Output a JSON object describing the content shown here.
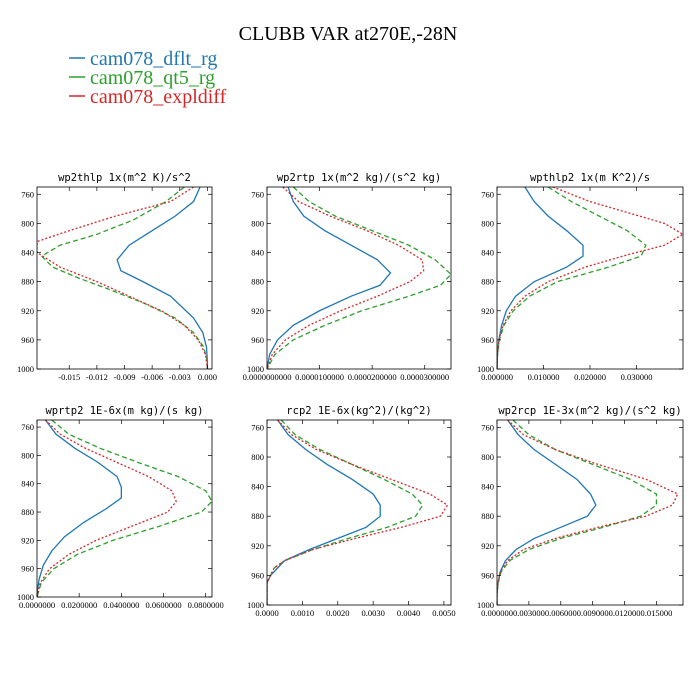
{
  "chart_data": {
    "title": "CLUBB VAR at270E,-28N",
    "type": "line",
    "legend": [
      {
        "name": "cam078_dflt_rg",
        "color": "#1f77b4"
      },
      {
        "name": "cam078_qt5_rg",
        "color": "#2ca02c"
      },
      {
        "name": "cam078_expldiff",
        "color": "#d62728"
      }
    ],
    "panels": [
      {
        "title": "wp2thlp  1x(m^2 K)/s^2",
        "xlim": [
          -0.0185,
          0.0005
        ],
        "xticks": [
          -0.015,
          -0.012,
          -0.009,
          -0.006,
          -0.003,
          0.0
        ],
        "xticklabels": [
          "-0.015",
          "-0.012",
          "-0.009",
          "-0.006",
          "-0.003",
          "0.000"
        ],
        "ylim": [
          1000,
          750
        ],
        "yticks": [
          760,
          800,
          840,
          880,
          920,
          960,
          1000
        ],
        "yticklabels": [
          "760",
          "800",
          "840",
          "880",
          "920",
          "960",
          "1000"
        ],
        "series": [
          {
            "name": "cam078_dflt_rg",
            "color": "#1f77b4",
            "dash": "",
            "p": [
              750,
              770,
              790,
              810,
              830,
              850,
              865,
              880,
              900,
              930,
              950,
              970,
              990,
              1000
            ],
            "x": [
              -0.0008,
              -0.0015,
              -0.0035,
              -0.006,
              -0.0085,
              -0.0098,
              -0.0094,
              -0.007,
              -0.004,
              -0.0015,
              -0.0005,
              -0.0001,
              0.0,
              0.0
            ]
          },
          {
            "name": "cam078_qt5_rg",
            "color": "#2ca02c",
            "dash": "5,3",
            "p": [
              750,
              770,
              795,
              815,
              830,
              845,
              860,
              875,
              890,
              910,
              930,
              950,
              970,
              990,
              1000
            ],
            "x": [
              -0.0025,
              -0.0045,
              -0.008,
              -0.012,
              -0.016,
              -0.018,
              -0.0168,
              -0.014,
              -0.0108,
              -0.0068,
              -0.0035,
              -0.0015,
              -0.0004,
              0.0,
              0.0
            ]
          },
          {
            "name": "cam078_expldiff",
            "color": "#d62728",
            "dash": "2,2",
            "p": [
              750,
              770,
              790,
              810,
              825,
              840,
              860,
              880,
              900,
              920,
              940,
              960,
              980,
              1000
            ],
            "x": [
              -0.0015,
              -0.004,
              -0.01,
              -0.015,
              -0.0185,
              -0.0185,
              -0.016,
              -0.012,
              -0.0085,
              -0.005,
              -0.0025,
              -0.001,
              -0.0002,
              0.0
            ]
          }
        ]
      },
      {
        "title": "wp2rtp  1x(m^2 kg)/(s^2 kg)",
        "xlim": [
          0.0,
          3.5e-05
        ],
        "xticks": [
          0.0,
          1e-05,
          2e-05,
          3e-05
        ],
        "xticklabels": [
          "0.0000000000",
          "0.0000100000",
          "0.0000200000",
          "0.0000300000"
        ],
        "ylim": [
          1000,
          750
        ],
        "yticks": [
          760,
          800,
          840,
          880,
          920,
          960,
          1000
        ],
        "yticklabels": [
          "760",
          "800",
          "840",
          "880",
          "920",
          "960",
          "1000"
        ],
        "series": [
          {
            "name": "cam078_dflt_rg",
            "color": "#1f77b4",
            "dash": "",
            "p": [
              750,
              770,
              790,
              810,
              830,
              850,
              868,
              885,
              900,
              920,
              940,
              960,
              980,
              1000
            ],
            "x": [
              4e-06,
              5e-06,
              7e-06,
              1.1e-05,
              1.6e-05,
              2.1e-05,
              2.35e-05,
              2.15e-05,
              1.6e-05,
              1e-05,
              5e-06,
              2e-06,
              5e-07,
              0.0
            ]
          },
          {
            "name": "cam078_qt5_rg",
            "color": "#2ca02c",
            "dash": "5,3",
            "p": [
              750,
              770,
              790,
              810,
              830,
              850,
              870,
              885,
              900,
              920,
              940,
              960,
              980,
              1000
            ],
            "x": [
              5e-06,
              8e-06,
              1.3e-05,
              2e-05,
              2.7e-05,
              3.2e-05,
              3.5e-05,
              3.3e-05,
              2.7e-05,
              1.8e-05,
              1.1e-05,
              5e-06,
              1.5e-06,
              0.0
            ]
          },
          {
            "name": "cam078_expldiff",
            "color": "#d62728",
            "dash": "2,2",
            "p": [
              750,
              770,
              790,
              810,
              830,
              850,
              865,
              880,
              900,
              920,
              940,
              960,
              980,
              1000
            ],
            "x": [
              3e-06,
              6e-06,
              1.2e-05,
              1.9e-05,
              2.5e-05,
              2.95e-05,
              2.98e-05,
              2.72e-05,
              2.1e-05,
              1.4e-05,
              8e-06,
              3.5e-06,
              1e-06,
              0.0
            ]
          }
        ]
      },
      {
        "title": "wpthlp2  1x(m K^2)/s",
        "xlim": [
          0.0,
          0.04
        ],
        "xticks": [
          0.0,
          0.01,
          0.02,
          0.03
        ],
        "xticklabels": [
          "0.000000",
          "0.010000",
          "0.020000",
          "0.030000"
        ],
        "ylim": [
          1000,
          750
        ],
        "yticks": [
          760,
          800,
          840,
          880,
          920,
          960,
          1000
        ],
        "yticklabels": [
          "760",
          "800",
          "840",
          "880",
          "920",
          "960",
          "1000"
        ],
        "series": [
          {
            "name": "cam078_dflt_rg",
            "color": "#1f77b4",
            "dash": "",
            "p": [
              750,
              770,
              790,
              810,
              830,
              845,
              860,
              880,
              900,
              920,
              940,
              960,
              980,
              1000
            ],
            "x": [
              0.006,
              0.008,
              0.011,
              0.015,
              0.0185,
              0.0185,
              0.015,
              0.008,
              0.004,
              0.002,
              0.001,
              0.0004,
              0.0001,
              0.0
            ]
          },
          {
            "name": "cam078_qt5_rg",
            "color": "#2ca02c",
            "dash": "5,3",
            "p": [
              750,
              770,
              790,
              810,
              830,
              845,
              860,
              880,
              900,
              920,
              940,
              960,
              980,
              1000
            ],
            "x": [
              0.011,
              0.016,
              0.022,
              0.028,
              0.032,
              0.031,
              0.024,
              0.013,
              0.007,
              0.0035,
              0.0015,
              0.0005,
              0.0001,
              0.0
            ]
          },
          {
            "name": "cam078_expldiff",
            "color": "#d62728",
            "dash": "2,2",
            "p": [
              750,
              770,
              785,
              800,
              815,
              830,
              845,
              860,
              880,
              900,
              920,
              940,
              960,
              980,
              1000
            ],
            "x": [
              0.012,
              0.02,
              0.028,
              0.036,
              0.04,
              0.036,
              0.027,
              0.019,
              0.011,
              0.006,
              0.003,
              0.0013,
              0.0004,
              0.0001,
              0.0
            ]
          }
        ]
      },
      {
        "title": "wprtp2  1E-6x(m kg)/(s kg)",
        "xlim": [
          0.0,
          0.083
        ],
        "xticks": [
          0.0,
          0.02,
          0.04,
          0.06,
          0.08
        ],
        "xticklabels": [
          "0.0000000",
          "0.0200000",
          "0.0400000",
          "0.0600000",
          "0.0800000"
        ],
        "ylim": [
          1000,
          750
        ],
        "yticks": [
          760,
          800,
          840,
          880,
          920,
          960,
          1000
        ],
        "yticklabels": [
          "760",
          "800",
          "840",
          "880",
          "920",
          "960",
          "1000"
        ],
        "series": [
          {
            "name": "cam078_dflt_rg",
            "color": "#1f77b4",
            "dash": "",
            "p": [
              750,
              770,
              790,
              810,
              830,
              845,
              860,
              875,
              895,
              915,
              935,
              955,
              975,
              995,
              1000
            ],
            "x": [
              0.004,
              0.009,
              0.018,
              0.029,
              0.038,
              0.04,
              0.04,
              0.033,
              0.022,
              0.013,
              0.007,
              0.003,
              0.001,
              0.0,
              0.0
            ]
          },
          {
            "name": "cam078_qt5_rg",
            "color": "#2ca02c",
            "dash": "5,3",
            "p": [
              750,
              770,
              790,
              810,
              830,
              850,
              865,
              880,
              900,
              920,
              940,
              960,
              980,
              1000
            ],
            "x": [
              0.007,
              0.015,
              0.03,
              0.048,
              0.067,
              0.08,
              0.083,
              0.078,
              0.058,
              0.036,
              0.019,
              0.008,
              0.002,
              0.0
            ]
          },
          {
            "name": "cam078_expldiff",
            "color": "#d62728",
            "dash": "2,2",
            "p": [
              750,
              770,
              790,
              810,
              830,
              850,
              865,
              880,
              900,
              920,
              940,
              960,
              980,
              1000
            ],
            "x": [
              0.004,
              0.011,
              0.023,
              0.038,
              0.053,
              0.064,
              0.066,
              0.062,
              0.045,
              0.028,
              0.015,
              0.006,
              0.0015,
              0.0
            ]
          }
        ]
      },
      {
        "title": "rcp2  1E-6x(kg^2)/(kg^2)",
        "xlim": [
          0.0,
          0.0052
        ],
        "xticks": [
          0.0,
          0.001,
          0.002,
          0.003,
          0.004,
          0.005
        ],
        "xticklabels": [
          "0.0000",
          "0.0010",
          "0.0020",
          "0.0030",
          "0.0040",
          "0.0050"
        ],
        "ylim": [
          1000,
          750
        ],
        "yticks": [
          760,
          800,
          840,
          880,
          920,
          960,
          1000
        ],
        "yticklabels": [
          "760",
          "800",
          "840",
          "880",
          "920",
          "960",
          "1000"
        ],
        "series": [
          {
            "name": "cam078_dflt_rg",
            "color": "#1f77b4",
            "dash": "",
            "p": [
              750,
              770,
              790,
              810,
              830,
              850,
              865,
              880,
              895,
              910,
              925,
              940,
              950,
              960,
              970,
              985,
              1000
            ],
            "x": [
              0.0003,
              0.0006,
              0.0011,
              0.0017,
              0.0024,
              0.003,
              0.0032,
              0.0032,
              0.0028,
              0.002,
              0.0012,
              0.0005,
              0.0003,
              0.0001,
              0.0,
              0.0,
              0.0
            ]
          },
          {
            "name": "cam078_qt5_rg",
            "color": "#2ca02c",
            "dash": "5,3",
            "p": [
              750,
              770,
              790,
              810,
              830,
              850,
              865,
              880,
              895,
              910,
              925,
              940,
              950,
              960,
              970,
              985,
              1000
            ],
            "x": [
              0.0004,
              0.0008,
              0.0015,
              0.0024,
              0.0033,
              0.0041,
              0.0044,
              0.0042,
              0.0034,
              0.0023,
              0.0013,
              0.0005,
              0.0002,
              0.0001,
              0.0,
              0.0,
              0.0
            ]
          },
          {
            "name": "cam078_expldiff",
            "color": "#d62728",
            "dash": "2,2",
            "p": [
              750,
              770,
              790,
              810,
              830,
              850,
              865,
              880,
              895,
              910,
              925,
              940,
              950,
              960,
              970,
              985,
              1000
            ],
            "x": [
              0.0003,
              0.0007,
              0.0014,
              0.0024,
              0.0035,
              0.0046,
              0.0051,
              0.0049,
              0.0038,
              0.0025,
              0.0013,
              0.0005,
              0.0002,
              0.0001,
              0.0,
              0.0,
              0.0
            ]
          }
        ]
      },
      {
        "title": "wp2rcp  1E-3x(m^2 kg)/(s^2 kg)",
        "xlim": [
          0.0,
          0.0175
        ],
        "xticks": [
          0.0,
          0.003,
          0.006,
          0.009,
          0.012,
          0.015
        ],
        "xticklabels": [
          "0.000000",
          "0.003000",
          "0.006000",
          "0.009000",
          "0.012000",
          "0.015000"
        ],
        "ylim": [
          1000,
          750
        ],
        "yticks": [
          760,
          800,
          840,
          880,
          920,
          960,
          1000
        ],
        "yticklabels": [
          "760",
          "800",
          "840",
          "880",
          "920",
          "960",
          "1000"
        ],
        "series": [
          {
            "name": "cam078_dflt_rg",
            "color": "#1f77b4",
            "dash": "",
            "p": [
              750,
              770,
              790,
              810,
              830,
              850,
              865,
              880,
              895,
              910,
              925,
              940,
              955,
              970,
              985,
              1000
            ],
            "x": [
              0.001,
              0.002,
              0.0035,
              0.0055,
              0.0075,
              0.0088,
              0.0093,
              0.0085,
              0.006,
              0.0035,
              0.0018,
              0.0008,
              0.0003,
              0.0001,
              0.0,
              0.0
            ]
          },
          {
            "name": "cam078_qt5_rg",
            "color": "#2ca02c",
            "dash": "5,3",
            "p": [
              750,
              770,
              790,
              810,
              830,
              850,
              865,
              880,
              895,
              910,
              925,
              940,
              955,
              970,
              985,
              1000
            ],
            "x": [
              0.0015,
              0.003,
              0.0055,
              0.009,
              0.0125,
              0.015,
              0.015,
              0.0135,
              0.01,
              0.006,
              0.003,
              0.0012,
              0.0004,
              0.0001,
              0.0,
              0.0
            ]
          },
          {
            "name": "cam078_expldiff",
            "color": "#d62728",
            "dash": "2,2",
            "p": [
              750,
              770,
              790,
              810,
              830,
              850,
              865,
              880,
              895,
              910,
              925,
              940,
              955,
              970,
              985,
              1000
            ],
            "x": [
              0.001,
              0.0025,
              0.0055,
              0.0095,
              0.014,
              0.017,
              0.0165,
              0.014,
              0.0095,
              0.0055,
              0.0025,
              0.001,
              0.0003,
              0.0001,
              0.0,
              0.0
            ]
          }
        ]
      }
    ]
  }
}
